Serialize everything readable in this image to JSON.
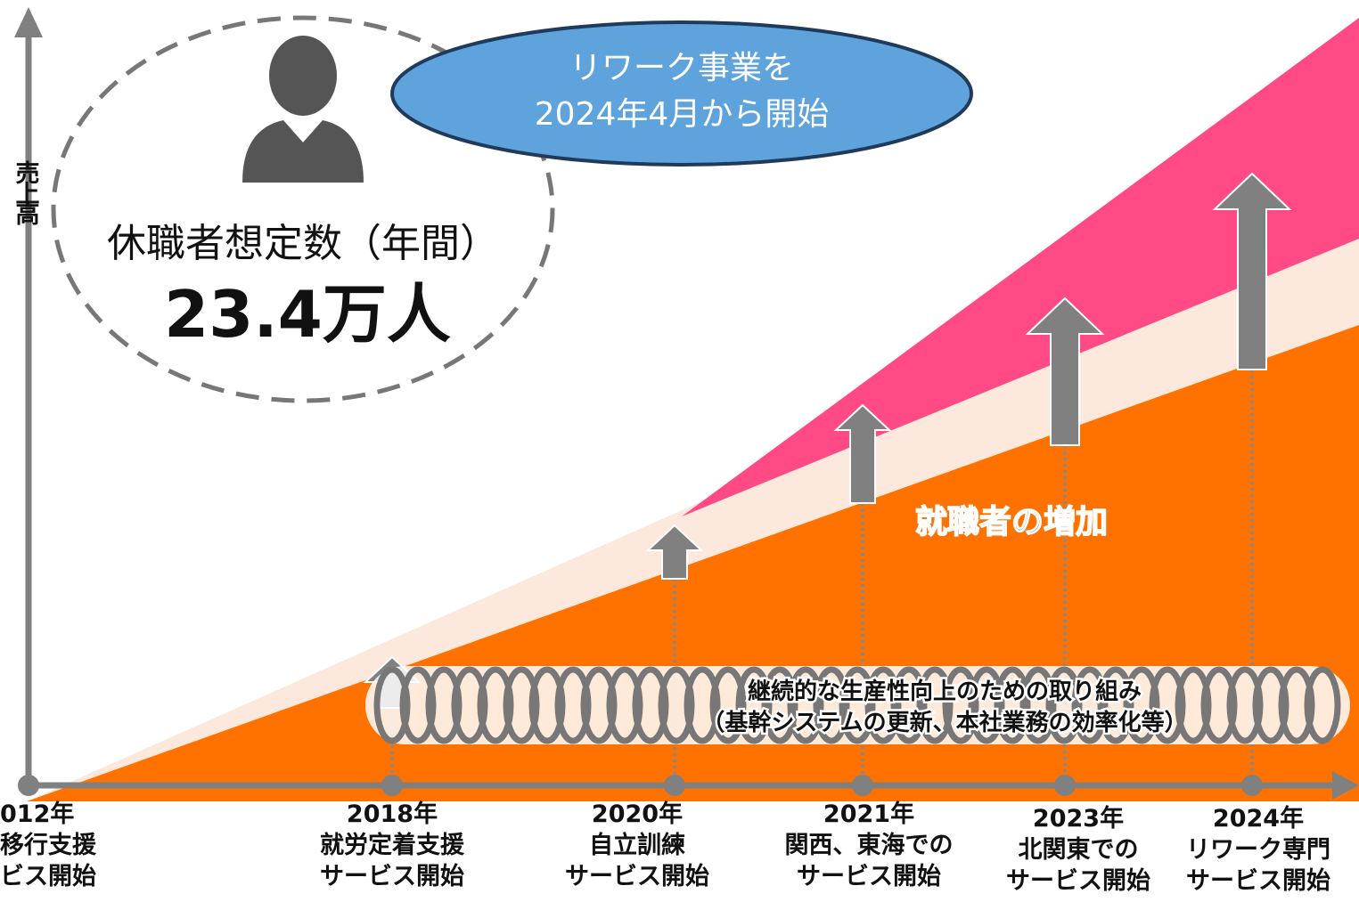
{
  "axis": {
    "y_label": "売上高"
  },
  "callout": {
    "label": "休職者想定数（年間）",
    "value": "23.4万人"
  },
  "bubble": {
    "lines": [
      "リワーク事業を",
      "2024年4月から開始"
    ]
  },
  "growth_label": "就職者の増加",
  "initiative": {
    "lines": [
      "継続的な生産性向上のための取り組み",
      "（基幹システムの更新、本社業務の効率化等）"
    ]
  },
  "milestones": [
    {
      "year": "012年",
      "lines": [
        "移行支援",
        "ビス開始"
      ]
    },
    {
      "year": "2018年",
      "lines": [
        "就労定着支援",
        "サービス開始"
      ]
    },
    {
      "year": "2020年",
      "lines": [
        "自立訓練",
        "サービス開始"
      ]
    },
    {
      "year": "2021年",
      "lines": [
        "関西、東海での",
        "サービス開始"
      ]
    },
    {
      "year": "2023年",
      "lines": [
        "北関東での",
        "サービス開始"
      ]
    },
    {
      "year": "2024年",
      "lines": [
        "リワーク専門",
        "サービス開始"
      ]
    }
  ]
}
